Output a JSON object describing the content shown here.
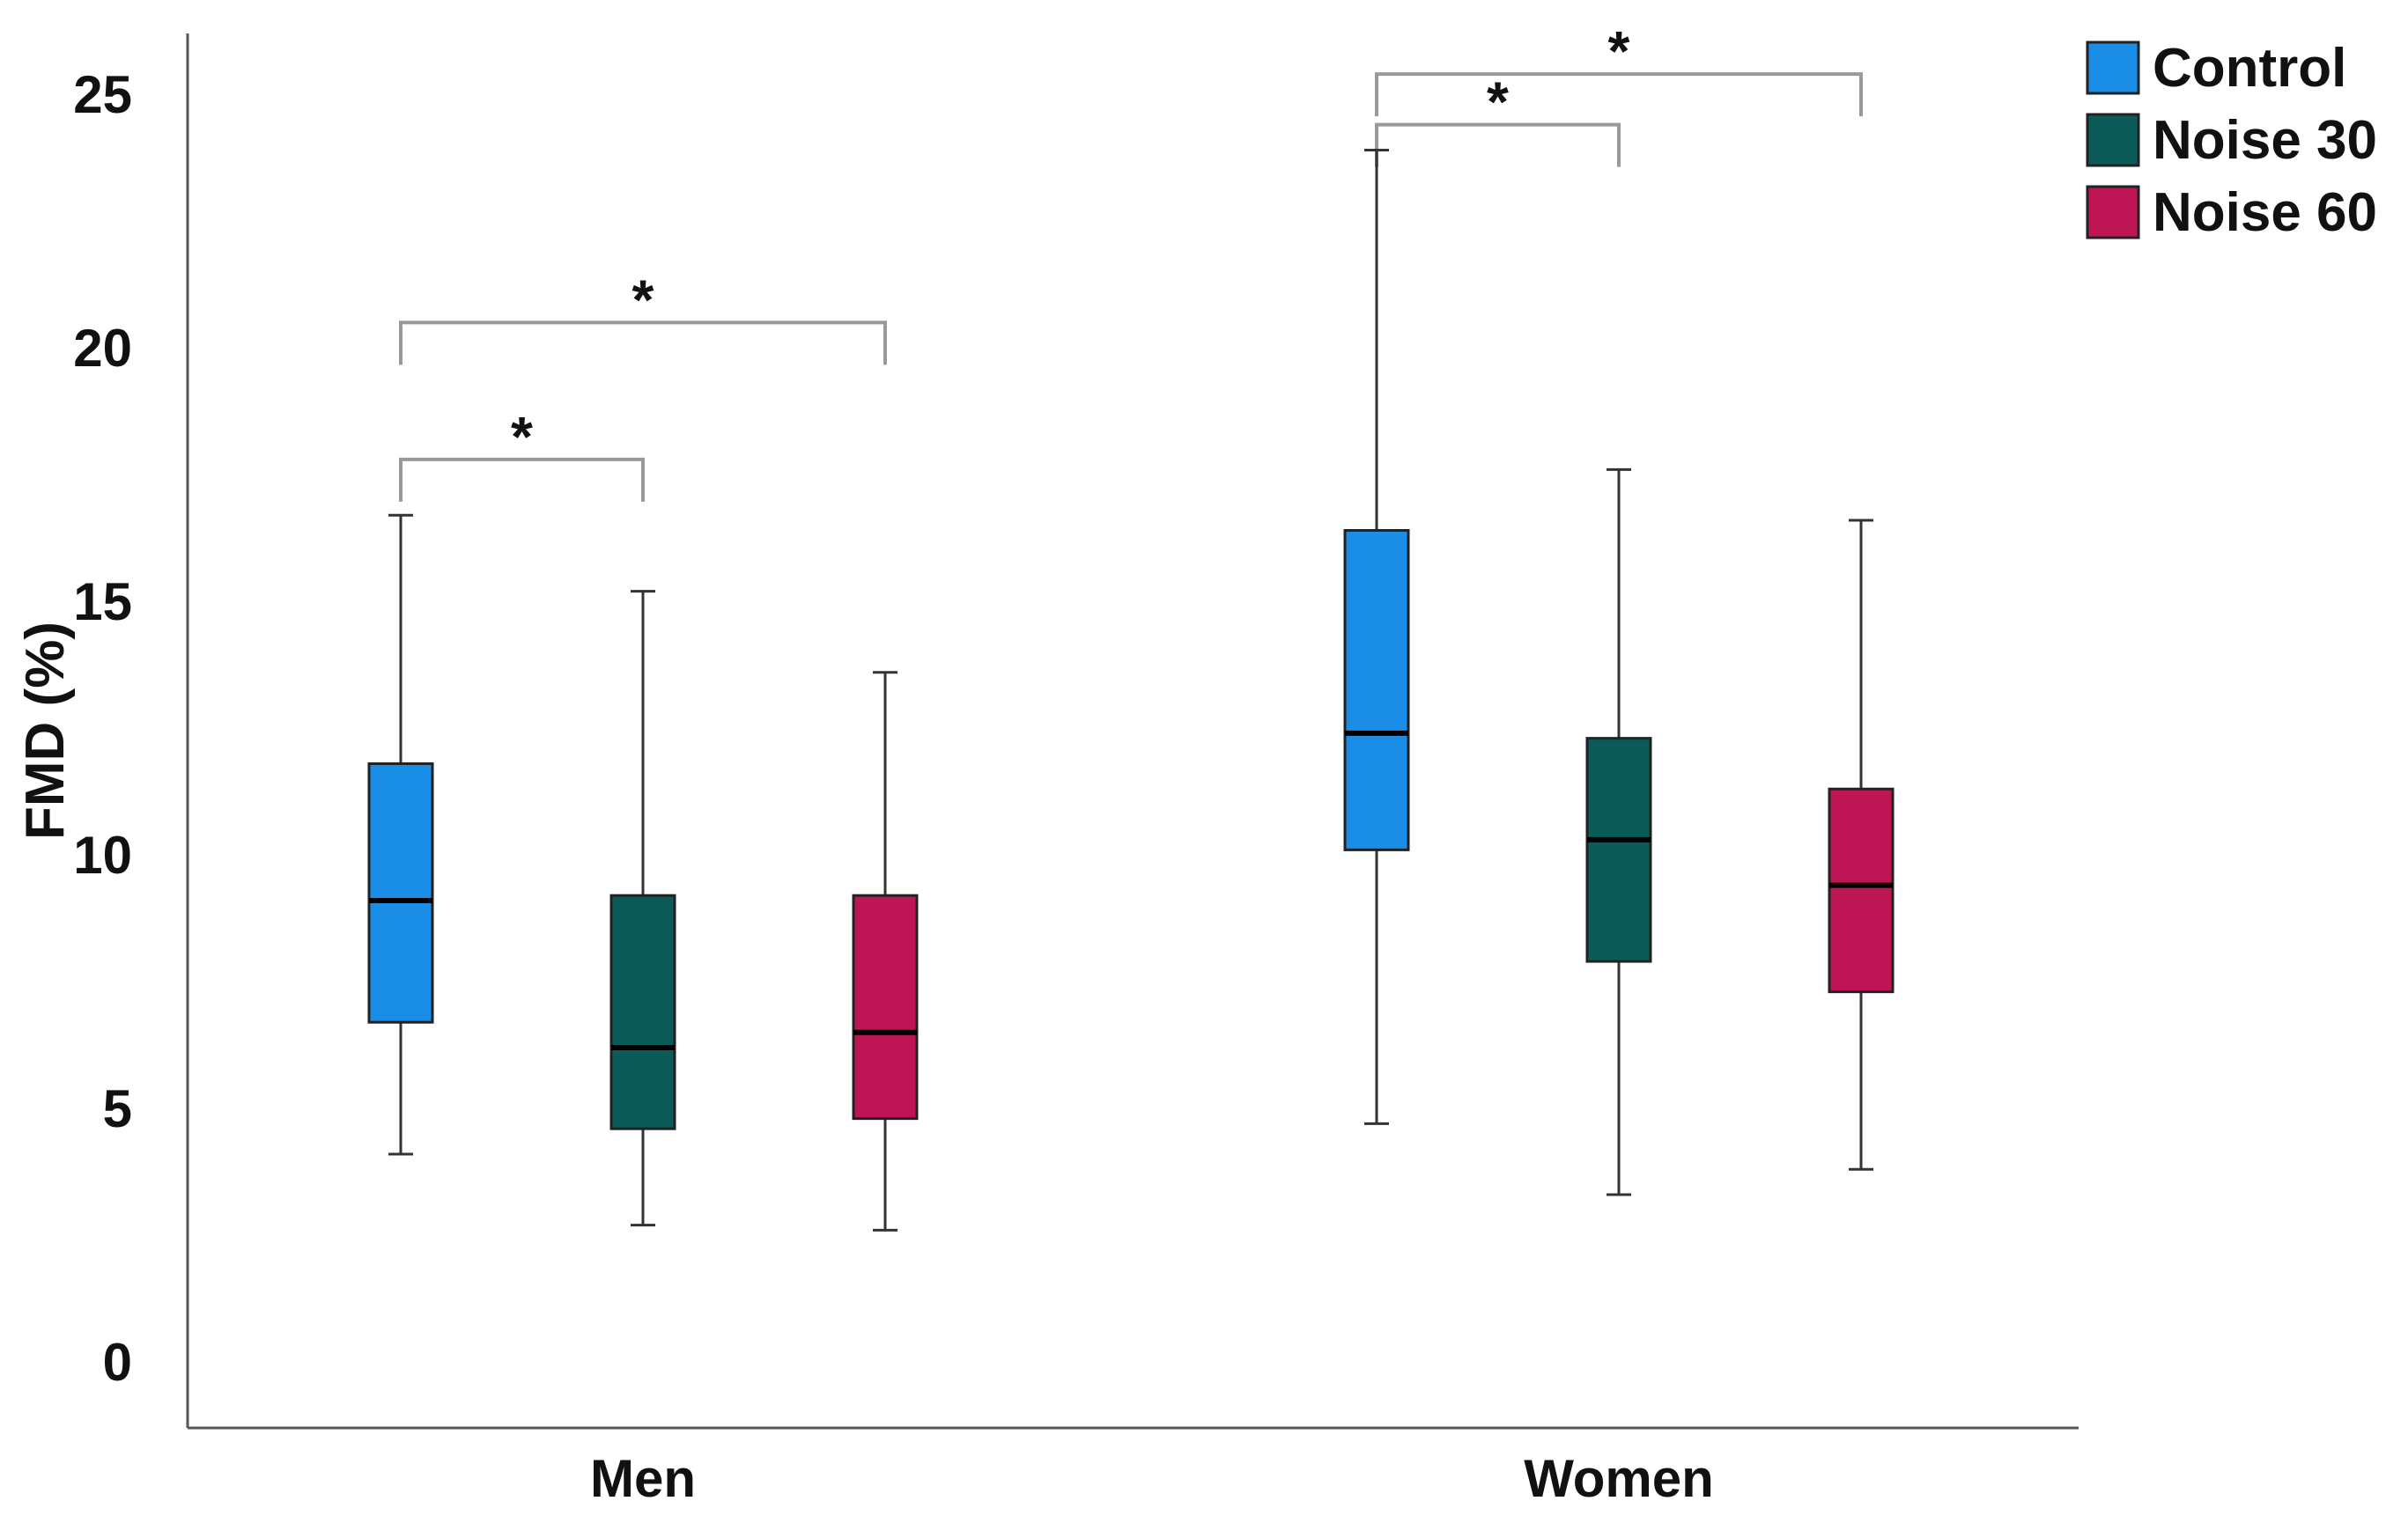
{
  "chart_data": {
    "type": "boxplot",
    "title": "",
    "xlabel": "",
    "ylabel": "FMD (%)",
    "ylim": [
      -1.3,
      26.2
    ],
    "yticks": [
      0,
      5,
      10,
      15,
      20,
      25
    ],
    "categories": [
      "Men",
      "Women"
    ],
    "series": [
      {
        "name": "Control",
        "color": "#1a8ee6",
        "boxes": [
          {
            "category": "Men",
            "whisker_low": 4.1,
            "q1": 6.7,
            "median": 9.1,
            "q3": 11.8,
            "whisker_high": 16.7
          },
          {
            "category": "Women",
            "whisker_low": 4.7,
            "q1": 10.1,
            "median": 12.4,
            "q3": 16.4,
            "whisker_high": 23.9
          }
        ]
      },
      {
        "name": "Noise 30",
        "color": "#0b5c58",
        "boxes": [
          {
            "category": "Men",
            "whisker_low": 2.7,
            "q1": 4.6,
            "median": 6.2,
            "q3": 9.2,
            "whisker_high": 15.2
          },
          {
            "category": "Women",
            "whisker_low": 3.3,
            "q1": 7.9,
            "median": 10.3,
            "q3": 12.3,
            "whisker_high": 17.6
          }
        ]
      },
      {
        "name": "Noise 60",
        "color": "#be1654",
        "boxes": [
          {
            "category": "Men",
            "whisker_low": 2.6,
            "q1": 4.8,
            "median": 6.5,
            "q3": 9.2,
            "whisker_high": 13.6
          },
          {
            "category": "Women",
            "whisker_low": 3.8,
            "q1": 7.3,
            "median": 9.4,
            "q3": 11.3,
            "whisker_high": 16.6
          }
        ]
      }
    ],
    "significance": [
      {
        "category": "Men",
        "from": "Control",
        "to": "Noise 30",
        "label": "*",
        "level": 17.8
      },
      {
        "category": "Men",
        "from": "Control",
        "to": "Noise 60",
        "label": "*",
        "level": 20.5
      },
      {
        "category": "Women",
        "from": "Control",
        "to": "Noise 30",
        "label": "*",
        "level": 24.4
      },
      {
        "category": "Women",
        "from": "Control",
        "to": "Noise 60",
        "label": "*",
        "level": 25.4
      }
    ],
    "legend": {
      "position": "top-right",
      "entries": [
        "Control",
        "Noise 30",
        "Noise 60"
      ]
    }
  }
}
